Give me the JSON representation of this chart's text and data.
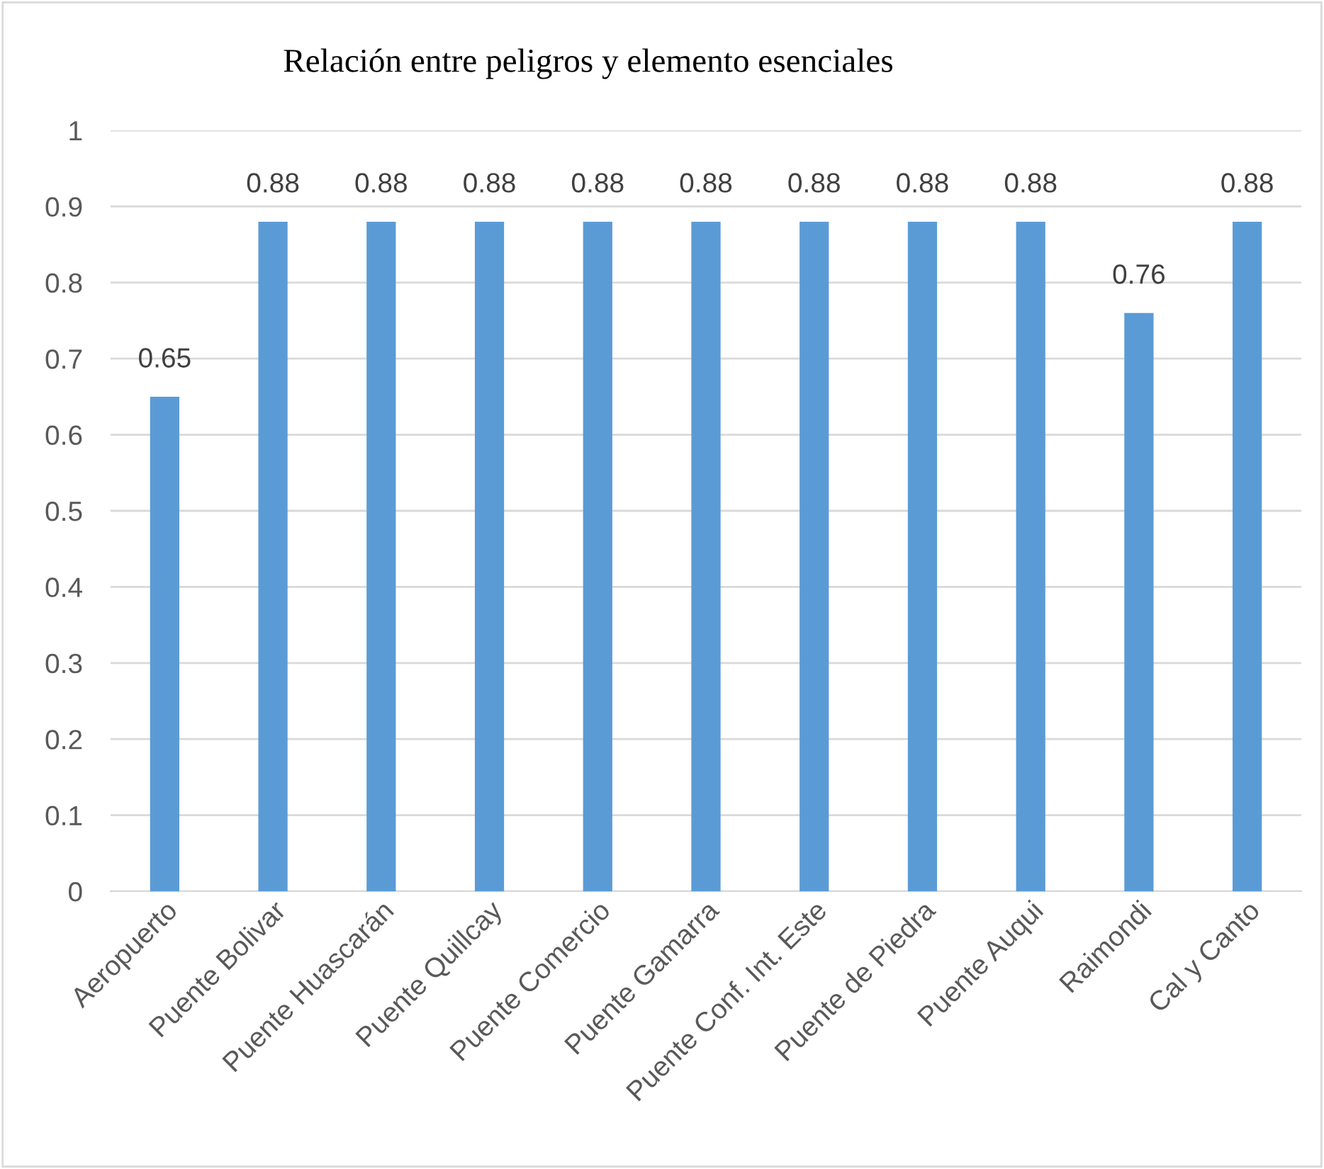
{
  "chart_data": {
    "type": "bar",
    "title": "Relación entre peligros y elemento esenciales",
    "categories": [
      "Aeropuerto",
      "Puente Bolivar",
      "Puente Huascarán",
      "Puente Quillcay",
      "Puente Comercio",
      "Puente Gamarra",
      "Puente Conf. Int. Este",
      "Puente de Piedra",
      "Puente Auqui",
      "Raimondi",
      "Cal y Canto"
    ],
    "values": [
      0.65,
      0.88,
      0.88,
      0.88,
      0.88,
      0.88,
      0.88,
      0.88,
      0.88,
      0.76,
      0.88
    ],
    "color": "#5b9bd5",
    "ylim": [
      0,
      1
    ],
    "yticks": [
      0,
      0.1,
      0.2,
      0.3,
      0.4,
      0.5,
      0.6,
      0.7,
      0.8,
      0.9,
      1
    ],
    "grid": "y",
    "data_labels": true
  }
}
